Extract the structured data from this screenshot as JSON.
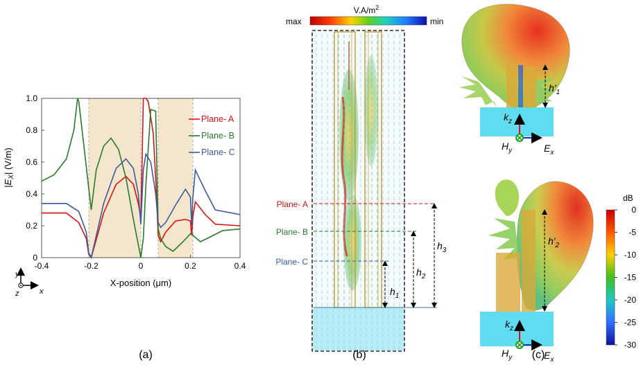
{
  "colors": {
    "plane_a": "#e01010",
    "plane_b": "#2a7a2a",
    "plane_c": "#3a5aa0",
    "shade": "#f3e6cc",
    "substrate": "#5fdcf0",
    "gold": "#d9a93a"
  },
  "panel_a": {
    "caption": "(a)",
    "axis_icon": {
      "y": "y",
      "z": "z",
      "x": "x"
    },
    "chart_data": {
      "type": "line",
      "xlabel": "X-position (μm)",
      "ylabel": "|Ex| (V/m)",
      "xlim": [
        -0.4,
        0.4
      ],
      "ylim": [
        0,
        1.0
      ],
      "xticks": [
        "-0.4",
        "-0.2",
        "0",
        "0.2",
        "0.4"
      ],
      "yticks": [
        "0",
        "0.2",
        "0.4",
        "0.6",
        "0.8",
        "1.0"
      ],
      "shaded_regions": [
        [
          -0.21,
          0.0
        ],
        [
          0.07,
          0.21
        ]
      ],
      "legend_position": "right",
      "series": [
        {
          "name": "Plane- A",
          "color": "#e01010",
          "x": [
            -0.4,
            -0.3,
            -0.25,
            -0.22,
            -0.21,
            -0.2,
            -0.15,
            -0.1,
            -0.06,
            -0.03,
            -0.01,
            0.0,
            0.005,
            0.01,
            0.02,
            0.03,
            0.05,
            0.06,
            0.07,
            0.08,
            0.1,
            0.14,
            0.18,
            0.2,
            0.205,
            0.21,
            0.22,
            0.26,
            0.3,
            0.4
          ],
          "y": [
            0.28,
            0.28,
            0.22,
            0.12,
            0.02,
            0.0,
            0.28,
            0.46,
            0.51,
            0.46,
            0.34,
            0.25,
            0.6,
            1.0,
            1.0,
            0.98,
            0.78,
            0.5,
            0.14,
            0.1,
            0.16,
            0.23,
            0.24,
            0.23,
            0.14,
            0.26,
            0.35,
            0.27,
            0.21,
            0.2
          ]
        },
        {
          "name": "Plane- B",
          "color": "#2a7a2a",
          "x": [
            -0.4,
            -0.35,
            -0.3,
            -0.27,
            -0.255,
            -0.25,
            -0.2,
            -0.18,
            -0.15,
            -0.12,
            -0.09,
            -0.06,
            -0.03,
            0.0,
            0.01,
            0.02,
            0.04,
            0.06,
            0.07,
            0.08,
            0.1,
            0.13,
            0.17,
            0.2,
            0.205,
            0.21,
            0.24,
            0.28,
            0.33,
            0.4
          ],
          "y": [
            0.48,
            0.52,
            0.62,
            0.8,
            1.0,
            0.98,
            0.3,
            0.55,
            0.7,
            0.75,
            0.68,
            0.5,
            0.24,
            0.0,
            0.12,
            0.45,
            0.93,
            0.92,
            0.18,
            0.12,
            0.07,
            0.04,
            0.1,
            0.15,
            0.16,
            0.14,
            0.1,
            0.13,
            0.17,
            0.18
          ]
        },
        {
          "name": "Plane- C",
          "color": "#3a5aa0",
          "x": [
            -0.4,
            -0.3,
            -0.25,
            -0.22,
            -0.21,
            -0.2,
            -0.15,
            -0.1,
            -0.06,
            -0.03,
            -0.01,
            0.0,
            0.01,
            0.02,
            0.04,
            0.06,
            0.07,
            0.08,
            0.1,
            0.14,
            0.18,
            0.2,
            0.205,
            0.21,
            0.22,
            0.26,
            0.3,
            0.4
          ],
          "y": [
            0.34,
            0.34,
            0.29,
            0.16,
            0.03,
            0.0,
            0.34,
            0.56,
            0.62,
            0.56,
            0.4,
            0.21,
            0.55,
            0.65,
            0.6,
            0.4,
            0.22,
            0.19,
            0.22,
            0.33,
            0.43,
            0.38,
            0.2,
            0.38,
            0.55,
            0.42,
            0.3,
            0.27
          ]
        }
      ]
    }
  },
  "panel_b": {
    "caption": "(b)",
    "colorbar_unit": "V.A/m",
    "colorbar_unit_sup": "2",
    "colorbar_max": "max",
    "colorbar_min": "min",
    "planes": [
      {
        "label": "Plane- A",
        "color": "#e01010"
      },
      {
        "label": "Plane- B",
        "color": "#2a7a2a"
      },
      {
        "label": "Plane- C",
        "color": "#3a5aa0"
      }
    ],
    "heights": {
      "h1": "h",
      "h1_sub": "1",
      "h2": "h",
      "h2_sub": "2",
      "h3": "h",
      "h3_sub": "3"
    }
  },
  "panel_c": {
    "caption": "(c)",
    "top": {
      "h_label": "h'",
      "h_sub": "1",
      "k": "k",
      "k_sub": "z",
      "H": "H",
      "H_sub": "y",
      "E": "E",
      "E_sub": "x"
    },
    "bottom": {
      "h_label": "h'",
      "h_sub": "2",
      "k": "k",
      "k_sub": "z",
      "H": "H",
      "H_sub": "y",
      "E": "E",
      "E_sub": "x"
    },
    "colorbar": {
      "unit": "dB",
      "ticks": [
        "0",
        "-5",
        "-10",
        "-15",
        "-20",
        "-25",
        "-30"
      ]
    }
  }
}
